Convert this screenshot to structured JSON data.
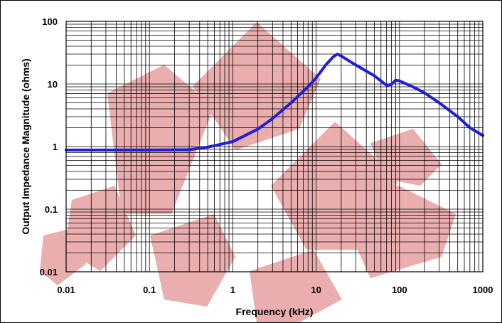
{
  "chart_data": {
    "type": "line",
    "title": "",
    "xlabel": "Frequency (kHz)",
    "ylabel": "Output Impedance Magnitude (ohms)",
    "xscale": "log",
    "yscale": "log",
    "xlim": [
      0.01,
      1000
    ],
    "ylim": [
      0.01,
      100
    ],
    "grid": true,
    "x_tick_labels": [
      "0.01",
      "0.1",
      "1",
      "10",
      "100",
      "1000"
    ],
    "y_tick_labels": [
      "100",
      "10",
      "1",
      "0.1",
      "0.01"
    ],
    "series": [
      {
        "color": "#1f1fd6",
        "x": [
          0.01,
          0.1,
          0.3,
          0.5,
          1,
          2,
          3,
          5,
          8,
          10,
          13,
          16,
          18,
          20,
          30,
          50,
          70,
          80,
          90,
          100,
          150,
          200,
          300,
          500,
          700,
          1000
        ],
        "y": [
          0.88,
          0.88,
          0.89,
          0.98,
          1.2,
          1.9,
          2.8,
          5.0,
          9.0,
          12.5,
          20,
          27,
          30,
          28,
          20,
          13.5,
          9.5,
          9.8,
          11.5,
          11.2,
          8.8,
          7.2,
          5.0,
          3.0,
          2.0,
          1.5
        ]
      }
    ]
  }
}
